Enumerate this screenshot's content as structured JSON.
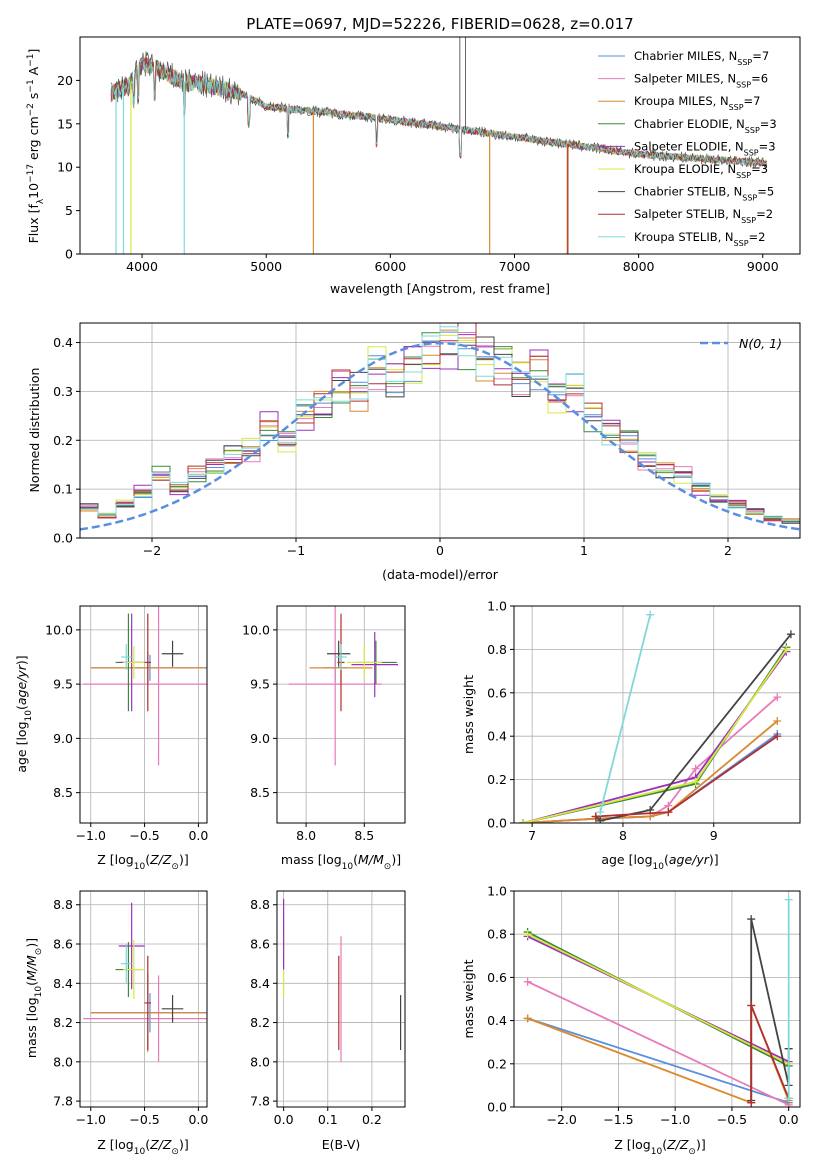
{
  "title": "PLATE=0697, MJD=52226, FIBERID=0628, z=0.017",
  "colors": {
    "chabrier_miles": "#5a8ee0",
    "salpeter_miles": "#e87ab8",
    "kroupa_miles": "#d98a30",
    "chabrier_elodie": "#3b8a3b",
    "salpeter_elodie": "#9b30c0",
    "kroupa_elodie": "#d8e840",
    "chabrier_stelib": "#444444",
    "salpeter_stelib": "#b03030",
    "kroupa_stelib": "#80d8d8",
    "gaussian": "#5a8ee0",
    "grid": "#b0b0b0"
  },
  "chart_data": [
    {
      "id": "spectrum",
      "type": "line",
      "xlabel": "wavelength [Angstrom, rest frame]",
      "ylabel": "Flux [f",
      "ylabel_parts": [
        "Flux [f",
        "λ",
        "10",
        "−17",
        " erg cm",
        "−2",
        " s",
        "−1",
        " A",
        "−1",
        "]"
      ],
      "xlim": [
        3500,
        9300
      ],
      "ylim": [
        0,
        25
      ],
      "xticks": [
        "4000",
        "5000",
        "6000",
        "7000",
        "8000",
        "9000"
      ],
      "yticks": [
        "0",
        "5",
        "10",
        "15",
        "20"
      ],
      "legend_position": "top-right",
      "series": [
        {
          "name": "Chabrier MILES, N",
          "sub": "SSP",
          "suffix": "=7"
        },
        {
          "name": "Salpeter MILES, N",
          "sub": "SSP",
          "suffix": "=6"
        },
        {
          "name": "Kroupa MILES, N",
          "sub": "SSP",
          "suffix": "=7"
        },
        {
          "name": "Chabrier ELODIE, N",
          "sub": "SSP",
          "suffix": "=3"
        },
        {
          "name": "Salpeter ELODIE, N",
          "sub": "SSP",
          "suffix": "=3"
        },
        {
          "name": "Kroupa ELODIE, N",
          "sub": "SSP",
          "suffix": "=3"
        },
        {
          "name": "Chabrier STELIB, N",
          "sub": "SSP",
          "suffix": "=5"
        },
        {
          "name": "Salpeter STELIB, N",
          "sub": "SSP",
          "suffix": "=2"
        },
        {
          "name": "Kroupa STELIB, N",
          "sub": "SSP",
          "suffix": "=2"
        }
      ],
      "continuum": {
        "x": [
          3750,
          3900,
          4000,
          4100,
          4300,
          4500,
          4800,
          5000,
          5500,
          6000,
          6500,
          7000,
          7500,
          8000,
          8500,
          9000
        ],
        "y": [
          18.5,
          19.5,
          22.0,
          21.5,
          20.0,
          19.5,
          18.5,
          17.0,
          16.3,
          15.5,
          14.5,
          13.5,
          12.5,
          11.5,
          11.0,
          10.5
        ]
      }
    },
    {
      "id": "residuals",
      "type": "histogram",
      "xlabel": "(data-model)/error",
      "ylabel": "Normed distribution",
      "xlim": [
        -2.5,
        2.5
      ],
      "ylim": [
        0,
        0.44
      ],
      "xticks": [
        "−2",
        "−1",
        "0",
        "1",
        "2"
      ],
      "yticks": [
        "0.0",
        "0.1",
        "0.2",
        "0.3",
        "0.4"
      ],
      "legend": "N(0, 1)",
      "legend_position": "top-right",
      "bins": 40,
      "reference_values": [
        0.062,
        0.045,
        0.07,
        0.095,
        0.13,
        0.1,
        0.13,
        0.145,
        0.17,
        0.18,
        0.23,
        0.2,
        0.25,
        0.27,
        0.31,
        0.3,
        0.35,
        0.33,
        0.36,
        0.38,
        0.39,
        0.4,
        0.37,
        0.36,
        0.33,
        0.35,
        0.29,
        0.3,
        0.25,
        0.22,
        0.2,
        0.16,
        0.14,
        0.13,
        0.1,
        0.08,
        0.07,
        0.055,
        0.04,
        0.035
      ]
    },
    {
      "id": "age-vs-Z",
      "type": "errorbar",
      "xlabel": "Z [log10(Z/Z⊙)]",
      "ylabel": "age [log10(age/yr)]",
      "xlim": [
        -1.1,
        0.08
      ],
      "ylim": [
        8.22,
        10.22
      ],
      "xticks": [
        "−1.0",
        "−0.5",
        "0.0"
      ],
      "yticks": [
        "8.5",
        "9.0",
        "9.5",
        "10.0"
      ],
      "points": [
        {
          "series": "Chabrier MILES",
          "x": -0.45,
          "xerr": 0.55,
          "y": 9.65,
          "yerr": 0.12
        },
        {
          "series": "Salpeter MILES",
          "x": -0.37,
          "xerr": 0.7,
          "y": 9.5,
          "yerr": 0.75
        },
        {
          "series": "Kroupa MILES",
          "x": -0.47,
          "xerr": 0.53,
          "y": 9.65,
          "yerr": 0.15
        },
        {
          "series": "Chabrier ELODIE",
          "x": -0.65,
          "xerr": 0.12,
          "y": 9.7,
          "yerr": 0.45
        },
        {
          "series": "Salpeter ELODIE",
          "x": -0.62,
          "xerr": 0.12,
          "y": 9.7,
          "yerr": 0.45
        },
        {
          "series": "Kroupa ELODIE",
          "x": -0.6,
          "xerr": 0.1,
          "y": 9.7,
          "yerr": 0.15
        },
        {
          "series": "Chabrier STELIB",
          "x": -0.24,
          "xerr": 0.1,
          "y": 9.78,
          "yerr": 0.12
        },
        {
          "series": "Salpeter STELIB",
          "x": -0.47,
          "xerr": 0.03,
          "y": 9.7,
          "yerr": 0.45
        },
        {
          "series": "Kroupa STELIB",
          "x": -0.67,
          "xerr": 0.05,
          "y": 9.75,
          "yerr": 0.12
        }
      ]
    },
    {
      "id": "age-vs-mass",
      "type": "errorbar",
      "xlabel": "mass [log10(M/M⊙)]",
      "ylabel": "",
      "xlim": [
        7.75,
        8.85
      ],
      "ylim": [
        8.22,
        10.22
      ],
      "xticks": [
        "8.0",
        "8.5"
      ],
      "yticks": [
        "8.5",
        "9.0",
        "9.5",
        "10.0"
      ],
      "points": [
        {
          "series": "Chabrier MILES",
          "x": 8.25,
          "xerr": 0.1,
          "y": 9.65,
          "yerr": 0.12
        },
        {
          "series": "Salpeter MILES",
          "x": 8.25,
          "xerr": 0.4,
          "y": 9.5,
          "yerr": 0.75
        },
        {
          "series": "Kroupa MILES",
          "x": 8.3,
          "xerr": 0.27,
          "y": 9.65,
          "yerr": 0.15
        },
        {
          "series": "Chabrier ELODIE",
          "x": 8.6,
          "xerr": 0.18,
          "y": 9.7,
          "yerr": 0.2
        },
        {
          "series": "Salpeter ELODIE",
          "x": 8.59,
          "xerr": 0.2,
          "y": 9.68,
          "yerr": 0.3
        },
        {
          "series": "Kroupa ELODIE",
          "x": 8.5,
          "xerr": 0.15,
          "y": 9.7,
          "yerr": 0.15
        },
        {
          "series": "Chabrier STELIB",
          "x": 8.28,
          "xerr": 0.1,
          "y": 9.78,
          "yerr": 0.12
        },
        {
          "series": "Salpeter STELIB",
          "x": 8.3,
          "xerr": 0.03,
          "y": 9.7,
          "yerr": 0.45
        },
        {
          "series": "Kroupa STELIB",
          "x": 8.3,
          "xerr": 0.05,
          "y": 9.75,
          "yerr": 0.12
        }
      ]
    },
    {
      "id": "mass-weight-vs-age",
      "type": "line",
      "xlabel": "age [log10(age/yr)]",
      "ylabel": "mass weight",
      "xlim": [
        6.8,
        9.95
      ],
      "ylim": [
        0,
        1.0
      ],
      "xticks": [
        "7",
        "8",
        "9"
      ],
      "yticks": [
        "0.0",
        "0.2",
        "0.4",
        "0.6",
        "0.8",
        "1.0"
      ],
      "series": [
        {
          "name": "Chabrier MILES",
          "x": [
            6.9,
            7.7,
            8.3,
            8.5,
            9.7
          ],
          "y": [
            0.0,
            0.02,
            0.03,
            0.05,
            0.41
          ]
        },
        {
          "name": "Salpeter MILES",
          "x": [
            6.9,
            7.7,
            8.3,
            8.5,
            8.8,
            9.7
          ],
          "y": [
            0.0,
            0.02,
            0.03,
            0.08,
            0.25,
            0.58
          ]
        },
        {
          "name": "Kroupa MILES",
          "x": [
            6.9,
            7.7,
            8.3,
            8.5,
            9.7
          ],
          "y": [
            0.0,
            0.02,
            0.03,
            0.05,
            0.47
          ]
        },
        {
          "name": "Chabrier ELODIE",
          "x": [
            6.9,
            8.8,
            9.8
          ],
          "y": [
            0.0,
            0.18,
            0.81
          ]
        },
        {
          "name": "Salpeter ELODIE",
          "x": [
            6.9,
            8.8,
            9.8
          ],
          "y": [
            0.0,
            0.21,
            0.79
          ]
        },
        {
          "name": "Kroupa ELODIE",
          "x": [
            6.9,
            8.8,
            9.8
          ],
          "y": [
            0.0,
            0.19,
            0.8
          ]
        },
        {
          "name": "Chabrier STELIB",
          "x": [
            7.7,
            7.75,
            8.3,
            9.85
          ],
          "y": [
            0.03,
            0.01,
            0.06,
            0.87
          ]
        },
        {
          "name": "Salpeter STELIB",
          "x": [
            7.7,
            8.5,
            9.7
          ],
          "y": [
            0.03,
            0.05,
            0.4
          ]
        },
        {
          "name": "Kroupa STELIB",
          "x": [
            7.75,
            8.3
          ],
          "y": [
            0.05,
            0.96
          ]
        }
      ]
    },
    {
      "id": "mass-vs-Z",
      "type": "errorbar",
      "xlabel": "Z [log10(Z/Z⊙)]",
      "ylabel": "mass [log10(M/M⊙)]",
      "xlim": [
        -1.1,
        0.08
      ],
      "ylim": [
        7.77,
        8.87
      ],
      "xticks": [
        "−1.0",
        "−0.5",
        "0.0"
      ],
      "yticks": [
        "7.8",
        "8.0",
        "8.2",
        "8.4",
        "8.6",
        "8.8"
      ],
      "points": [
        {
          "series": "Chabrier MILES",
          "x": -0.45,
          "xerr": 0.55,
          "y": 8.25,
          "yerr": 0.1
        },
        {
          "series": "Salpeter MILES",
          "x": -0.37,
          "xerr": 0.7,
          "y": 8.22,
          "yerr": 0.22
        },
        {
          "series": "Kroupa MILES",
          "x": -0.47,
          "xerr": 0.53,
          "y": 8.25,
          "yerr": 0.2
        },
        {
          "series": "Chabrier ELODIE",
          "x": -0.65,
          "xerr": 0.12,
          "y": 8.47,
          "yerr": 0.14
        },
        {
          "series": "Salpeter ELODIE",
          "x": -0.62,
          "xerr": 0.12,
          "y": 8.59,
          "yerr": 0.22
        },
        {
          "series": "Kroupa ELODIE",
          "x": -0.6,
          "xerr": 0.1,
          "y": 8.47,
          "yerr": 0.15
        },
        {
          "series": "Chabrier STELIB",
          "x": -0.24,
          "xerr": 0.1,
          "y": 8.27,
          "yerr": 0.07
        },
        {
          "series": "Salpeter STELIB",
          "x": -0.47,
          "xerr": 0.03,
          "y": 8.3,
          "yerr": 0.24
        },
        {
          "series": "Kroupa STELIB",
          "x": -0.67,
          "xerr": 0.05,
          "y": 8.5,
          "yerr": 0.1
        }
      ]
    },
    {
      "id": "mass-vs-EBV",
      "type": "errorbar",
      "xlabel": "E(B-V)",
      "ylabel": "",
      "xlim": [
        -0.015,
        0.275
      ],
      "ylim": [
        7.77,
        8.87
      ],
      "xticks": [
        "0.0",
        "0.1",
        "0.2"
      ],
      "yticks": [
        "7.8",
        "8.0",
        "8.2",
        "8.4",
        "8.6",
        "8.8"
      ],
      "points": [
        {
          "series": "Salpeter MILES",
          "x": 0.13,
          "xerr": 0,
          "y": 8.32,
          "yerr": 0.32
        },
        {
          "series": "Salpeter STELIB",
          "x": 0.125,
          "xerr": 0,
          "y": 8.3,
          "yerr": 0.24
        },
        {
          "series": "Kroupa ELODIE",
          "x": 0.0,
          "xerr": 0,
          "y": 8.53,
          "yerr": 0.2
        },
        {
          "series": "Salpeter ELODIE",
          "x": 0.0,
          "xerr": 0,
          "y": 8.65,
          "yerr": 0.18
        },
        {
          "series": "Chabrier STELIB",
          "x": 0.265,
          "xerr": 0,
          "y": 8.2,
          "yerr": 0.14
        }
      ]
    },
    {
      "id": "mass-weight-vs-Z",
      "type": "line",
      "xlabel": "Z [log10(Z/Z⊙)]",
      "ylabel": "mass weight",
      "xlim": [
        -2.42,
        0.1
      ],
      "ylim": [
        0,
        1.0
      ],
      "xticks": [
        "−2.0",
        "−1.5",
        "−1.0",
        "−0.5",
        "0.0"
      ],
      "yticks": [
        "0.0",
        "0.2",
        "0.4",
        "0.6",
        "0.8",
        "1.0"
      ],
      "series": [
        {
          "name": "Chabrier MILES",
          "x": [
            -2.3,
            0.0
          ],
          "y": [
            0.41,
            0.02
          ]
        },
        {
          "name": "Salpeter MILES",
          "x": [
            -2.3,
            0.0
          ],
          "y": [
            0.58,
            0.01
          ]
        },
        {
          "name": "Kroupa MILES",
          "x": [
            -2.3,
            -0.33,
            -0.33,
            0.0
          ],
          "y": [
            0.41,
            0.02,
            0.47,
            0.03
          ]
        },
        {
          "name": "Chabrier ELODIE",
          "x": [
            -2.3,
            0.0
          ],
          "y": [
            0.81,
            0.19
          ]
        },
        {
          "name": "Salpeter ELODIE",
          "x": [
            -2.3,
            0.0
          ],
          "y": [
            0.79,
            0.21
          ]
        },
        {
          "name": "Kroupa ELODIE",
          "x": [
            -2.3,
            0.0
          ],
          "y": [
            0.8,
            0.2
          ]
        },
        {
          "name": "Chabrier STELIB",
          "x": [
            -0.33,
            -0.33,
            0.0,
            0.0
          ],
          "y": [
            0.03,
            0.87,
            0.1,
            0.27
          ]
        },
        {
          "name": "Salpeter STELIB",
          "x": [
            -0.33,
            -0.33,
            0.0
          ],
          "y": [
            0.02,
            0.47,
            0.04
          ]
        },
        {
          "name": "Kroupa STELIB",
          "x": [
            0.0,
            0.0
          ],
          "y": [
            0.04,
            0.96
          ]
        }
      ]
    }
  ]
}
